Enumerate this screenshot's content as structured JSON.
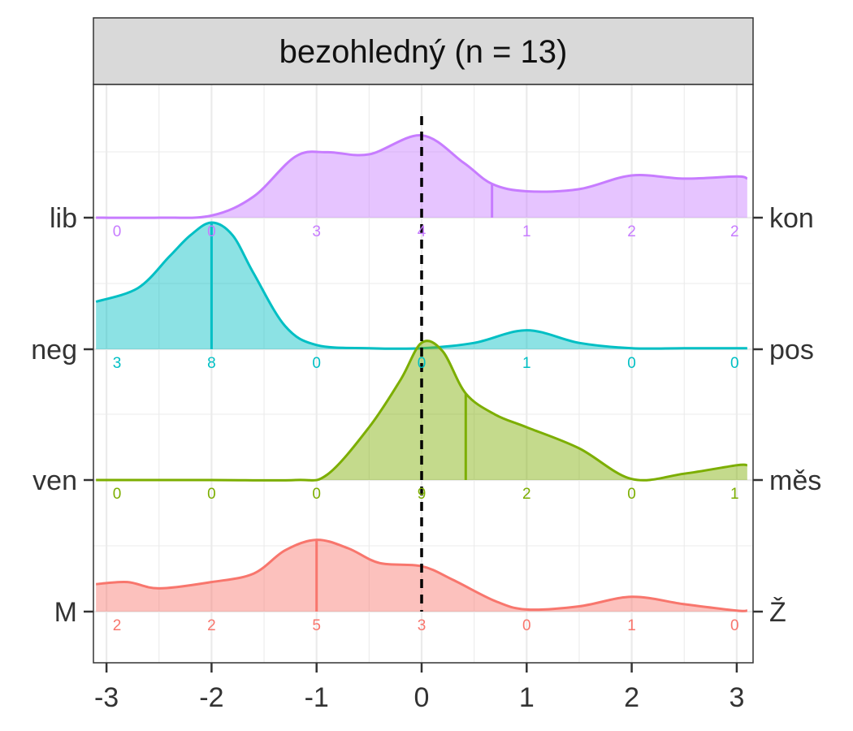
{
  "chart_data": {
    "type": "ridgeline",
    "title": "bezohledný (n = 13)",
    "x_ticks": [
      -3,
      -2,
      -1,
      0,
      1,
      2,
      3
    ],
    "xlim": [
      -3,
      3
    ],
    "reference_line_x": 0,
    "grid": true,
    "series": [
      {
        "left_label": "lib",
        "right_label": "kon",
        "color": "#C77CFF",
        "counts": [
          0,
          0,
          3,
          4,
          1,
          2,
          2
        ],
        "median": 0.67,
        "density_x": [
          -3.1,
          -2.5,
          -2.0,
          -1.6,
          -1.2,
          -0.9,
          -0.5,
          0.0,
          0.4,
          0.67,
          1.0,
          1.5,
          2.0,
          2.5,
          3.0,
          3.1
        ],
        "density_y": [
          0.0,
          0.0,
          0.02,
          0.2,
          0.58,
          0.62,
          0.6,
          0.78,
          0.52,
          0.32,
          0.25,
          0.27,
          0.4,
          0.37,
          0.39,
          0.37
        ]
      },
      {
        "left_label": "neg",
        "right_label": "pos",
        "color": "#00BFC4",
        "counts": [
          3,
          8,
          0,
          0,
          1,
          0,
          0
        ],
        "median": -2,
        "density_x": [
          -3.1,
          -2.7,
          -2.4,
          -2.2,
          -2.0,
          -1.8,
          -1.6,
          -1.3,
          -1.0,
          -0.5,
          0.0,
          0.5,
          1.0,
          1.5,
          2.0,
          2.5,
          3.1
        ],
        "density_y": [
          0.45,
          0.58,
          0.88,
          1.08,
          1.2,
          1.08,
          0.72,
          0.22,
          0.04,
          0.01,
          0.01,
          0.06,
          0.18,
          0.06,
          0.01,
          0.01,
          0.01
        ]
      },
      {
        "left_label": "ven",
        "right_label": "měs",
        "color": "#7CAE00",
        "counts": [
          0,
          0,
          0,
          9,
          2,
          0,
          1
        ],
        "median": 0.42,
        "density_x": [
          -3.1,
          -2.0,
          -1.2,
          -0.9,
          -0.5,
          -0.2,
          0.0,
          0.2,
          0.42,
          0.7,
          1.0,
          1.5,
          2.0,
          2.5,
          3.0,
          3.1
        ],
        "density_y": [
          0.0,
          0.0,
          0.0,
          0.05,
          0.5,
          0.95,
          1.3,
          1.22,
          0.82,
          0.62,
          0.5,
          0.3,
          0.01,
          0.06,
          0.14,
          0.14
        ]
      },
      {
        "left_label": "M",
        "right_label": "Ž",
        "color": "#F8766D",
        "counts": [
          2,
          2,
          5,
          3,
          0,
          1,
          0
        ],
        "median": -1,
        "density_x": [
          -3.1,
          -2.8,
          -2.5,
          -2.0,
          -1.6,
          -1.3,
          -1.0,
          -0.7,
          -0.4,
          0.0,
          0.3,
          0.7,
          1.0,
          1.5,
          2.0,
          2.5,
          3.0,
          3.1
        ],
        "density_y": [
          0.26,
          0.28,
          0.22,
          0.28,
          0.36,
          0.58,
          0.68,
          0.6,
          0.46,
          0.43,
          0.3,
          0.1,
          0.02,
          0.05,
          0.14,
          0.07,
          0.01,
          0.01
        ]
      }
    ]
  }
}
